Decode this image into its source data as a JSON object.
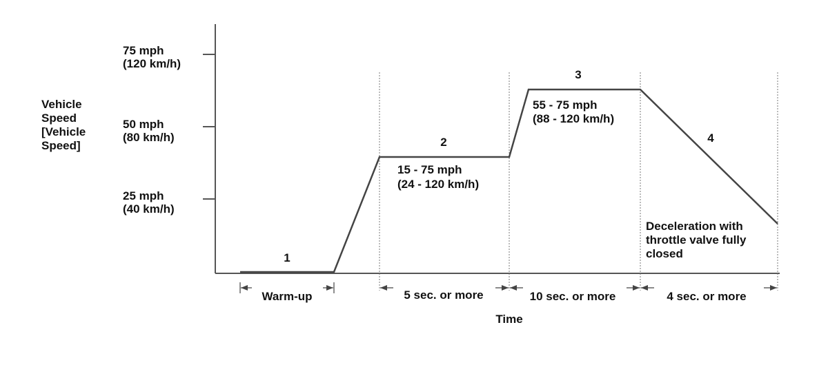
{
  "y_axis": {
    "label": [
      "Vehicle",
      "Speed",
      "[Vehicle",
      "Speed]"
    ],
    "ticks": [
      {
        "mph": "75 mph",
        "kmh": "(120 km/h)"
      },
      {
        "mph": "50 mph",
        "kmh": "(80 km/h)"
      },
      {
        "mph": "25 mph",
        "kmh": "(40 km/h)"
      }
    ]
  },
  "phases": [
    {
      "number": "1",
      "duration": "Warm-up"
    },
    {
      "number": "2",
      "speed": [
        "15 - 75 mph",
        "(24 - 120 km/h)"
      ],
      "duration": "5 sec. or more"
    },
    {
      "number": "3",
      "speed": [
        "55 - 75 mph",
        "(88 - 120 km/h)"
      ],
      "duration": "10 sec. or more"
    },
    {
      "number": "4",
      "note": [
        "Deceleration with",
        "throttle valve fully",
        "closed"
      ],
      "duration": "4 sec. or more"
    }
  ],
  "x_axis": {
    "label": "Time"
  }
}
